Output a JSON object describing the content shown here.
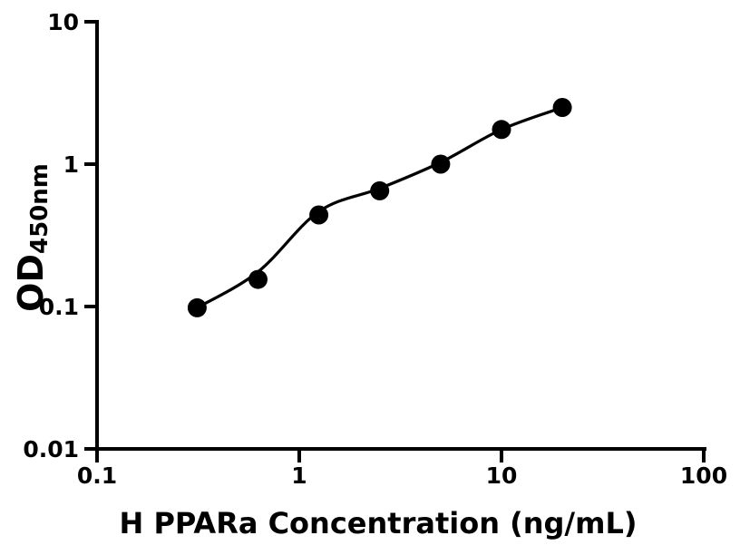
{
  "figure": {
    "background_color": "#ffffff",
    "foreground_color": "#000000"
  },
  "chart_data": {
    "type": "scatter",
    "title": "",
    "xlabel": "H PPARa Concentration (ng/mL)",
    "ylabel": "OD",
    "ylabel_subscript": "450nm",
    "xscale": "log",
    "yscale": "log",
    "xlim": [
      0.1,
      100
    ],
    "ylim": [
      0.01,
      10
    ],
    "grid": false,
    "legend": "none",
    "x_ticks": [
      {
        "value": 0.1,
        "label": "0.1"
      },
      {
        "value": 1,
        "label": "1"
      },
      {
        "value": 10,
        "label": "10"
      },
      {
        "value": 100,
        "label": "100"
      }
    ],
    "y_ticks": [
      {
        "value": 10,
        "label": "10"
      },
      {
        "value": 1,
        "label": "1"
      },
      {
        "value": 0.1,
        "label": "0.1"
      },
      {
        "value": 0.01,
        "label": "0.01"
      }
    ],
    "series": [
      {
        "marker": "filled-circle",
        "color": "#000000",
        "x": [
          0.3125,
          0.625,
          1.25,
          2.5,
          5,
          10,
          20
        ],
        "y": [
          0.098,
          0.155,
          0.44,
          0.65,
          1.0,
          1.75,
          2.5
        ]
      }
    ],
    "fit_curve": {
      "style": "solid",
      "color": "#000000",
      "x": [
        0.3125,
        0.625,
        1.25,
        2.5,
        5,
        10,
        20
      ],
      "y": [
        0.098,
        0.175,
        0.465,
        0.675,
        1.03,
        1.75,
        2.5
      ]
    }
  }
}
